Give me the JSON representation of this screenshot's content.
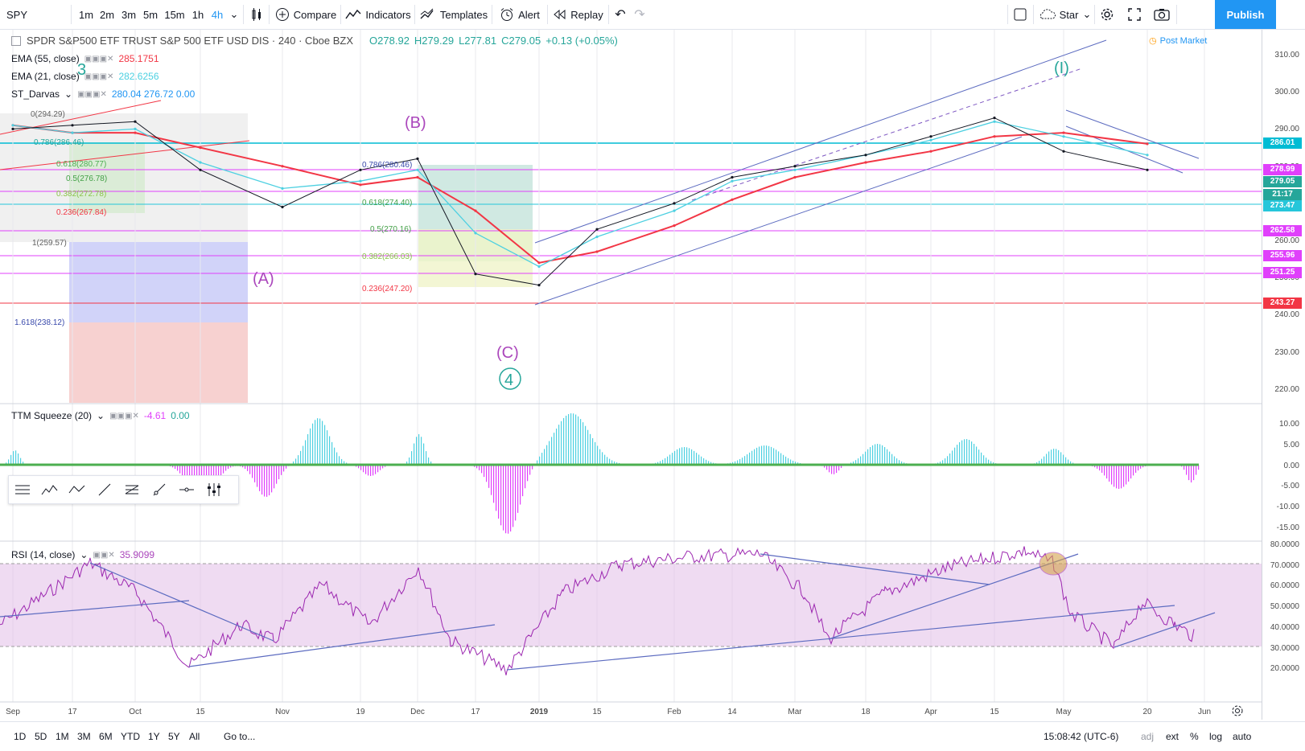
{
  "toolbar": {
    "symbol": "SPY",
    "intervals": [
      "1m",
      "2m",
      "3m",
      "5m",
      "15m",
      "1h",
      "4h"
    ],
    "active_interval": "4h",
    "compare": "Compare",
    "indicators": "Indicators",
    "templates": "Templates",
    "alert": "Alert",
    "replay": "Replay",
    "star": "Star",
    "publish": "Publish"
  },
  "legend": {
    "title": "SPDR S&P500 ETF TRUST S&P 500 ETF USD DIS · 240 · Cboe BZX",
    "open": "O278.92",
    "high": "H279.29",
    "low": "L277.81",
    "close": "C279.05",
    "change": "+0.13 (+0.05%)",
    "post_market": "Post Market",
    "ema55_label": "EMA (55, close)",
    "ema55_value": "285.1751",
    "ema21_label": "EMA (21, close)",
    "ema21_value": "282.6256",
    "darvas_label": "ST_Darvas",
    "darvas_values": "280.04  276.72  0.00",
    "ttm_label": "TTM Squeeze (20)",
    "ttm_value": "-4.61",
    "ttm_value2": "0.00",
    "rsi_label": "RSI (14, close)",
    "rsi_value": "35.9099"
  },
  "price_axis": [
    "310.00",
    "300.00",
    "290.00",
    "280.00",
    "270.00",
    "260.00",
    "250.00",
    "240.00",
    "230.00",
    "220.00"
  ],
  "price_tags": [
    {
      "label": "286.01",
      "color": "#00bcd4"
    },
    {
      "label": "278.99",
      "color": "#e040fb"
    },
    {
      "label": "279.05",
      "color": "#26a69a"
    },
    {
      "label": "21:17",
      "color": "#26a69a"
    },
    {
      "label": "273.47",
      "color": "#26c6da"
    },
    {
      "label": "262.58",
      "color": "#e040fb"
    },
    {
      "label": "255.96",
      "color": "#e040fb"
    },
    {
      "label": "251.25",
      "color": "#e040fb"
    },
    {
      "label": "243.27",
      "color": "#f23645"
    }
  ],
  "ttm_axis": [
    "10.00",
    "5.00",
    "0.00",
    "-5.00",
    "-10.00",
    "-15.00"
  ],
  "rsi_axis": [
    "80.0000",
    "70.0000",
    "60.0000",
    "50.0000",
    "40.0000",
    "30.0000",
    "20.0000"
  ],
  "time_axis": [
    "Sep",
    "17",
    "Oct",
    "15",
    "Nov",
    "19",
    "Dec",
    "17",
    "2019",
    "15",
    "Feb",
    "14",
    "Mar",
    "18",
    "Apr",
    "15",
    "May",
    "20",
    "Jun"
  ],
  "fib_left": [
    "0.786(286.46)",
    "0.618(280.77)",
    "0.5(276.78)",
    "0.382(272.78)",
    "0.236(267.84)",
    "1(259.57)",
    "1.618(238.12)",
    "0(294.29)"
  ],
  "fib_mid": [
    "0.786(280.46)",
    "0.618(274.40)",
    "0.5(270.16)",
    "0.382(266.03)",
    "0.236(247.20)"
  ],
  "wave_labels": {
    "A": "(A)",
    "B": "(B)",
    "C": "(C)",
    "four": "4",
    "three": "3",
    "one": "(I)"
  },
  "bottom": {
    "ranges": [
      "1D",
      "5D",
      "1M",
      "3M",
      "6M",
      "YTD",
      "1Y",
      "5Y",
      "All"
    ],
    "goto": "Go to...",
    "time": "15:08:42 (UTC-6)",
    "adj": "adj",
    "ext": "ext",
    "pct": "%",
    "log": "log",
    "auto": "auto"
  },
  "chart_data": {
    "type": "line",
    "title": "SPDR S&P500 ETF TRUST S&P 500 ETF USD DIS · 240 · Cboe BZX",
    "xlabel": "",
    "ylabel": "",
    "ylim": [
      215,
      315
    ],
    "x": [
      "Sep",
      "17",
      "Oct",
      "15",
      "Nov",
      "19",
      "Dec",
      "17",
      "2019",
      "15",
      "Feb",
      "14",
      "Mar",
      "18",
      "Apr",
      "15",
      "May",
      "20"
    ],
    "series": [
      {
        "name": "EMA (55, close)",
        "values": [
          291,
          289,
          289,
          285,
          280,
          275,
          277,
          268,
          254,
          257,
          264,
          271,
          277,
          281,
          284,
          288,
          289,
          286
        ]
      },
      {
        "name": "EMA (21, close)",
        "values": [
          291,
          289,
          290,
          281,
          274,
          276,
          279,
          262,
          253,
          261,
          268,
          276,
          279,
          283,
          287,
          292,
          288,
          283
        ]
      },
      {
        "values": [
          290,
          291,
          292,
          279,
          269,
          279,
          282,
          251,
          248,
          263,
          270,
          277,
          280,
          283,
          288,
          293,
          284,
          279
        ]
      }
    ]
  }
}
